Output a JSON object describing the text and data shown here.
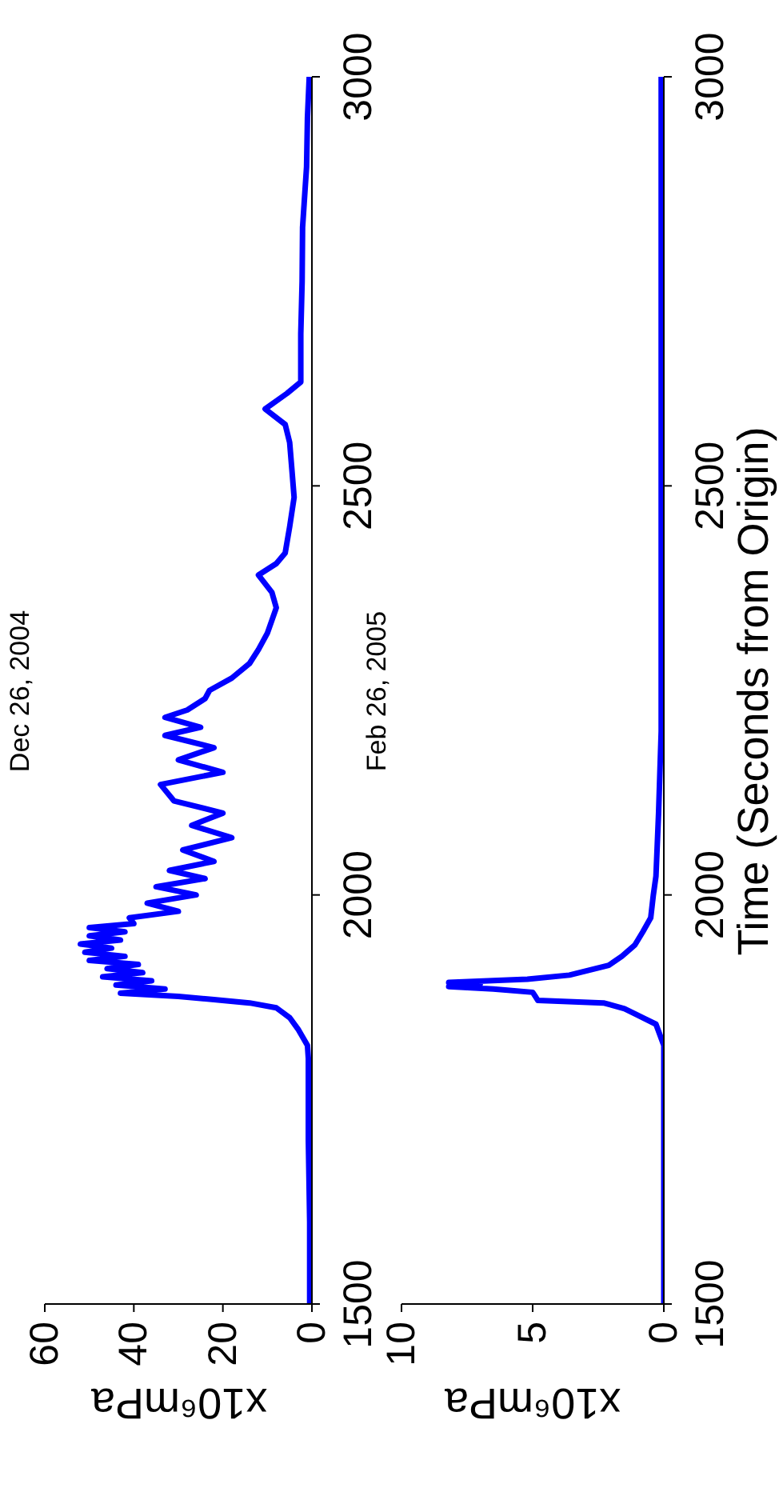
{
  "chart_data": [
    {
      "type": "line",
      "title": "Dec 26, 2004",
      "xlabel": "x10⁶mPa",
      "color": "#0000ff",
      "x": [
        0.5,
        0.5,
        0.8,
        0.8,
        1,
        3,
        5,
        8,
        14,
        22,
        30,
        43,
        33,
        44,
        36,
        47,
        38,
        46,
        39,
        50,
        42,
        51,
        45,
        52,
        43,
        50,
        42,
        50,
        40,
        41,
        30,
        37,
        26,
        35,
        24,
        32,
        22,
        29,
        18,
        27,
        20,
        31,
        34,
        20,
        30,
        22,
        33,
        25,
        33,
        28,
        24,
        23,
        18,
        14,
        12,
        10,
        8,
        9,
        12,
        8,
        6,
        5,
        4,
        4.5,
        5,
        6,
        10.5,
        5.6,
        2.5,
        2.5,
        2.2,
        2.1,
        1.2,
        1,
        0.6
      ],
      "values": [
        1500,
        1600,
        1700,
        1800,
        1816,
        1835,
        1850,
        1862,
        1868,
        1872,
        1876,
        1880,
        1885,
        1890,
        1895,
        1900,
        1905,
        1910,
        1915,
        1920,
        1925,
        1930,
        1935,
        1940,
        1945,
        1950,
        1955,
        1960,
        1965,
        1972,
        1980,
        1990,
        2000,
        2010,
        2020,
        2030,
        2041,
        2055,
        2070,
        2085,
        2100,
        2115,
        2135,
        2150,
        2165,
        2180,
        2195,
        2205,
        2217,
        2226,
        2240,
        2250,
        2265,
        2283,
        2300,
        2320,
        2351,
        2370,
        2391,
        2405,
        2418,
        2450,
        2486,
        2520,
        2553,
        2575,
        2594,
        2613,
        2627,
        2686,
        2750,
        2816,
        2890,
        2950,
        3000
      ],
      "xlim": [
        60,
        0
      ],
      "xticks": [
        0,
        20,
        40,
        60
      ],
      "ylim": [
        1500,
        3000
      ],
      "yticks": [
        1500,
        2000,
        2500,
        3000
      ],
      "grid": false
    },
    {
      "type": "line",
      "title": "Feb 26, 2005",
      "xlabel": "x10⁶mPa",
      "ylabel": "Time (Seconds from Origin)",
      "color": "#0000ff",
      "x": [
        0,
        0,
        0,
        0,
        0,
        0.3,
        1.5,
        2.3,
        4.8,
        4.9,
        5,
        6.5,
        8.2,
        7,
        8.2,
        5.2,
        3.6,
        2.1,
        1.6,
        1.1,
        0.8,
        0.5,
        0.4,
        0.3,
        0.2,
        0.1,
        0.1,
        0.1,
        0.1,
        0.1
      ],
      "values": [
        1500,
        1600,
        1700,
        1800,
        1816,
        1842,
        1861,
        1868,
        1871,
        1876,
        1881,
        1885,
        1888,
        1891,
        1893,
        1897,
        1902,
        1914,
        1925,
        1939,
        1955,
        1972,
        2000,
        2023,
        2100,
        2200,
        2400,
        2600,
        2800,
        3000
      ],
      "xlim": [
        10,
        0
      ],
      "xticks": [
        0,
        5,
        10
      ],
      "ylim": [
        1500,
        3000
      ],
      "yticks": [
        1500,
        2000,
        2500,
        3000
      ],
      "grid": false
    }
  ]
}
